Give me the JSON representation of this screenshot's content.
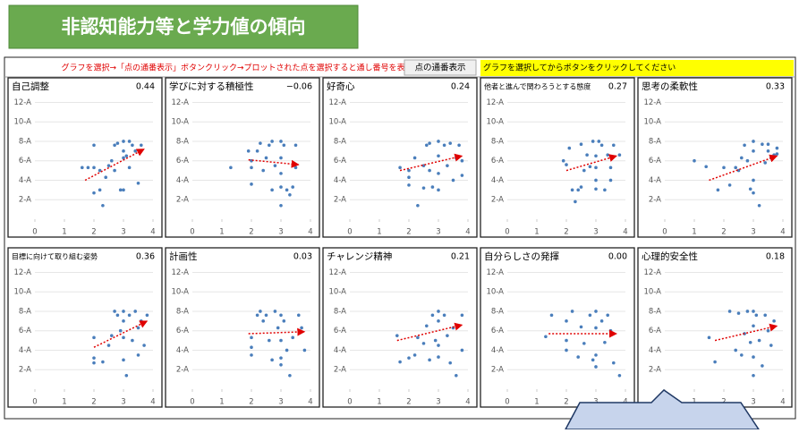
{
  "header": {
    "title": "非認知能力等と学力値の傾向"
  },
  "toolbar": {
    "instruction": "グラフを選択→「点の通番表示」ボタンクリック→プロットされた点を選択すると通し番号を表示",
    "button": "点の通番表示",
    "note": "グラフを選択してからボタンをクリックしてください"
  },
  "chart_data": [
    {
      "type": "scatter",
      "title": "自己調整",
      "correlation": {
        "value": 0.44,
        "label": "0.44"
      },
      "color": "#4a7ebb",
      "trend_color": "#e00000",
      "xlim": [
        0,
        4
      ],
      "ylim": [
        0,
        12.5
      ],
      "xticks": [
        0,
        1,
        2,
        3,
        4
      ],
      "yticks": [
        {
          "value": 2,
          "label": "2-A"
        },
        {
          "value": 4,
          "label": "4-A"
        },
        {
          "value": 6,
          "label": "6-A"
        },
        {
          "value": 8,
          "label": "8-A"
        },
        {
          "value": 10,
          "label": "10-A"
        },
        {
          "value": 12,
          "label": "12-A"
        }
      ],
      "x": [
        1.6,
        1.8,
        2,
        2,
        2,
        2.2,
        2.2,
        2.3,
        2.4,
        2.5,
        2.6,
        2.7,
        2.7,
        2.8,
        2.9,
        3,
        3,
        3,
        3,
        3.1,
        3.2,
        3.2,
        3.3,
        3.4,
        3.5,
        3.6
      ],
      "values": [
        5.3,
        5.3,
        5.3,
        7.6,
        2.7,
        5,
        3,
        1.4,
        4.3,
        5.5,
        6,
        5,
        7.6,
        7.8,
        3,
        6.3,
        8,
        7,
        3,
        6.5,
        8,
        5.3,
        7.6,
        7,
        3.7,
        7.6
      ],
      "trend": {
        "x": [
          1.7,
          3.7
        ],
        "values": [
          4,
          7.2
        ]
      }
    },
    {
      "type": "scatter",
      "title": "学びに対する積極性",
      "correlation": {
        "value": -0.06,
        "label": "−0.06"
      },
      "color": "#4a7ebb",
      "trend_color": "#e00000",
      "xlim": [
        0,
        4
      ],
      "ylim": [
        0,
        12.5
      ],
      "xticks": [
        0,
        1,
        2,
        3,
        4
      ],
      "yticks": [
        {
          "value": 2,
          "label": "2-A"
        },
        {
          "value": 4,
          "label": "4-A"
        },
        {
          "value": 6,
          "label": "6-A"
        },
        {
          "value": 8,
          "label": "8-A"
        },
        {
          "value": 10,
          "label": "10-A"
        },
        {
          "value": 12,
          "label": "12-A"
        }
      ],
      "x": [
        1.3,
        1.9,
        2,
        2,
        2,
        2.2,
        2.3,
        2.4,
        2.5,
        2.6,
        2.7,
        2.7,
        2.8,
        3,
        3,
        3,
        3,
        3,
        3.1,
        3.2,
        3.3,
        3.4,
        3.5,
        3.5
      ],
      "values": [
        5.3,
        7,
        5.3,
        3.6,
        6,
        7,
        7.8,
        5,
        6.3,
        7.6,
        3,
        8,
        5.5,
        8,
        6.3,
        4.7,
        3.3,
        1.4,
        7.6,
        3,
        2.5,
        3.3,
        7.6,
        5.3
      ],
      "trend": {
        "x": [
          1.9,
          3.6
        ],
        "values": [
          6.1,
          5.6
        ]
      }
    },
    {
      "type": "scatter",
      "title": "好奇心",
      "correlation": {
        "value": 0.24,
        "label": "0.24"
      },
      "color": "#4a7ebb",
      "trend_color": "#e00000",
      "xlim": [
        0,
        4
      ],
      "ylim": [
        0,
        12.5
      ],
      "xticks": [
        0,
        1,
        2,
        3,
        4
      ],
      "yticks": [
        {
          "value": 2,
          "label": "2-A"
        },
        {
          "value": 4,
          "label": "4-A"
        },
        {
          "value": 6,
          "label": "6-A"
        },
        {
          "value": 8,
          "label": "8-A"
        },
        {
          "value": 10,
          "label": "10-A"
        },
        {
          "value": 12,
          "label": "12-A"
        }
      ],
      "x": [
        1.7,
        2,
        2,
        2,
        2.2,
        2.3,
        2.5,
        2.5,
        2.6,
        2.7,
        2.7,
        2.8,
        3,
        3,
        3,
        3,
        3.2,
        3.3,
        3.4,
        3.5,
        3.6,
        3.7,
        3.8,
        3.8
      ],
      "values": [
        5.3,
        4.3,
        3.5,
        5,
        6.3,
        1.4,
        3.2,
        5.5,
        7.6,
        5,
        7.8,
        3.3,
        8,
        6.5,
        4.7,
        3,
        7.6,
        5.5,
        7.8,
        4,
        6.3,
        7.6,
        6,
        4.5
      ],
      "trend": {
        "x": [
          1.7,
          3.8
        ],
        "values": [
          5,
          6.5
        ]
      }
    },
    {
      "type": "scatter",
      "title": "他者と進んで関わろうとする態度",
      "correlation": {
        "value": 0.27,
        "label": "0.27"
      },
      "color": "#4a7ebb",
      "trend_color": "#e00000",
      "xlim": [
        0,
        4
      ],
      "ylim": [
        0,
        12.5
      ],
      "xticks": [
        0,
        1,
        2,
        3,
        4
      ],
      "yticks": [
        {
          "value": 2,
          "label": "2-A"
        },
        {
          "value": 4,
          "label": "4-A"
        },
        {
          "value": 6,
          "label": "6-A"
        },
        {
          "value": 8,
          "label": "8-A"
        },
        {
          "value": 10,
          "label": "10-A"
        },
        {
          "value": 12,
          "label": "12-A"
        }
      ],
      "x": [
        1.9,
        2,
        2.1,
        2.2,
        2.3,
        2.4,
        2.5,
        2.5,
        2.6,
        2.7,
        2.8,
        2.9,
        3,
        3,
        3,
        3,
        3.1,
        3.2,
        3.3,
        3.4,
        3.5,
        3.5,
        3.6,
        3.8
      ],
      "values": [
        6,
        5.6,
        7.3,
        3,
        1.8,
        3,
        3.3,
        7.7,
        5,
        6.6,
        5.4,
        8,
        3.1,
        6.5,
        5.3,
        4,
        8,
        7.6,
        3,
        6.6,
        5.3,
        4,
        7.6,
        6.6
      ],
      "trend": {
        "x": [
          2,
          3.7
        ],
        "values": [
          5,
          6.5
        ]
      }
    },
    {
      "type": "scatter",
      "title": "思考の柔軟性",
      "correlation": {
        "value": 0.33,
        "label": "0.33"
      },
      "color": "#4a7ebb",
      "trend_color": "#e00000",
      "xlim": [
        0,
        4
      ],
      "ylim": [
        0,
        12.5
      ],
      "xticks": [
        0,
        1,
        2,
        3,
        4
      ],
      "yticks": [
        {
          "value": 2,
          "label": "2-A"
        },
        {
          "value": 4,
          "label": "4-A"
        },
        {
          "value": 6,
          "label": "6-A"
        },
        {
          "value": 8,
          "label": "8-A"
        },
        {
          "value": 10,
          "label": "10-A"
        },
        {
          "value": 12,
          "label": "12-A"
        }
      ],
      "x": [
        1,
        1.4,
        1.8,
        2,
        2.2,
        2.4,
        2.5,
        2.6,
        2.7,
        2.8,
        2.9,
        3,
        3,
        3,
        3,
        3.2,
        3.3,
        3.4,
        3.5,
        3.5,
        3.6,
        3.7,
        3.8,
        3.8
      ],
      "values": [
        6,
        5.4,
        3,
        5.3,
        3.5,
        5.3,
        5,
        6.3,
        7.6,
        6,
        3.1,
        8,
        4,
        2.7,
        7,
        1.4,
        7.7,
        5.8,
        7.7,
        7,
        6.3,
        6.6,
        7.3,
        6.7
      ],
      "trend": {
        "x": [
          1.5,
          3.8
        ],
        "values": [
          4,
          6.5
        ]
      }
    },
    {
      "type": "scatter",
      "title": "目標に向けて取り組む姿勢",
      "correlation": {
        "value": 0.36,
        "label": "0.36"
      },
      "color": "#4a7ebb",
      "trend_color": "#e00000",
      "xlim": [
        0,
        4
      ],
      "ylim": [
        0,
        12.5
      ],
      "xticks": [
        0,
        1,
        2,
        3,
        4
      ],
      "yticks": [
        {
          "value": 2,
          "label": "2-A"
        },
        {
          "value": 4,
          "label": "4-A"
        },
        {
          "value": 6,
          "label": "6-A"
        },
        {
          "value": 8,
          "label": "8-A"
        },
        {
          "value": 10,
          "label": "10-A"
        },
        {
          "value": 12,
          "label": "12-A"
        }
      ],
      "x": [
        2,
        2,
        2,
        2.3,
        2.5,
        2.6,
        2.7,
        2.8,
        2.9,
        3,
        3,
        3,
        3,
        3.1,
        3.2,
        3.3,
        3.4,
        3.5,
        3.5,
        3.6,
        3.7,
        3.8
      ],
      "values": [
        5.3,
        3.2,
        2.7,
        2.8,
        4.5,
        5.5,
        8,
        7.6,
        6,
        8,
        7,
        5.3,
        3,
        1.4,
        7.6,
        5,
        8,
        6.3,
        3.5,
        7,
        4.5,
        7.6
      ],
      "trend": {
        "x": [
          2,
          3.8
        ],
        "values": [
          4.3,
          7
        ]
      }
    },
    {
      "type": "scatter",
      "title": "計画性",
      "correlation": {
        "value": 0.03,
        "label": "0.03"
      },
      "color": "#4a7ebb",
      "trend_color": "#e00000",
      "xlim": [
        0,
        4
      ],
      "ylim": [
        0,
        12.5
      ],
      "xticks": [
        0,
        1,
        2,
        3,
        4
      ],
      "yticks": [
        {
          "value": 2,
          "label": "2-A"
        },
        {
          "value": 4,
          "label": "4-A"
        },
        {
          "value": 6,
          "label": "6-A"
        },
        {
          "value": 8,
          "label": "8-A"
        },
        {
          "value": 10,
          "label": "10-A"
        },
        {
          "value": 12,
          "label": "12-A"
        }
      ],
      "x": [
        2,
        2,
        2,
        2.2,
        2.3,
        2.4,
        2.5,
        2.6,
        2.7,
        2.8,
        2.9,
        3,
        3,
        3,
        3,
        3.1,
        3.2,
        3.3,
        3.4,
        3.6,
        3.7,
        3.8
      ],
      "values": [
        5.3,
        4.3,
        3.5,
        7.6,
        8,
        7,
        7.6,
        5,
        3,
        8,
        6.3,
        7.6,
        5,
        3.2,
        2.5,
        7,
        4,
        1.4,
        5.3,
        7.6,
        6.3,
        4
      ],
      "trend": {
        "x": [
          1.9,
          3.8
        ],
        "values": [
          5.7,
          5.9
        ]
      }
    },
    {
      "type": "scatter",
      "title": "チャレンジ精神",
      "correlation": {
        "value": 0.21,
        "label": "0.21"
      },
      "color": "#4a7ebb",
      "trend_color": "#e00000",
      "xlim": [
        0,
        4
      ],
      "ylim": [
        0,
        12.5
      ],
      "xticks": [
        0,
        1,
        2,
        3,
        4
      ],
      "yticks": [
        {
          "value": 2,
          "label": "2-A"
        },
        {
          "value": 4,
          "label": "4-A"
        },
        {
          "value": 6,
          "label": "6-A"
        },
        {
          "value": 8,
          "label": "8-A"
        },
        {
          "value": 10,
          "label": "10-A"
        },
        {
          "value": 12,
          "label": "12-A"
        }
      ],
      "x": [
        1.6,
        1.7,
        2,
        2.2,
        2.3,
        2.5,
        2.6,
        2.7,
        2.8,
        2.9,
        3,
        3,
        3,
        3,
        3.2,
        3.3,
        3.4,
        3.5,
        3.6,
        3.8,
        3.8
      ],
      "values": [
        5.5,
        2.8,
        3.2,
        3.5,
        5.3,
        4.7,
        6.5,
        3,
        7.6,
        5,
        8,
        7,
        4.5,
        3.3,
        7.6,
        5.5,
        2.7,
        6.3,
        1.4,
        7.6,
        4
      ],
      "trend": {
        "x": [
          1.6,
          3.8
        ],
        "values": [
          5,
          6.6
        ]
      }
    },
    {
      "type": "scatter",
      "title": "自分らしさの発揮",
      "correlation": {
        "value": 0,
        "label": "0.00"
      },
      "color": "#4a7ebb",
      "trend_color": "#e00000",
      "xlim": [
        0,
        4
      ],
      "ylim": [
        0,
        12.5
      ],
      "xticks": [
        0,
        1,
        2,
        3,
        4
      ],
      "yticks": [
        {
          "value": 2,
          "label": "2-A"
        },
        {
          "value": 4,
          "label": "4-A"
        },
        {
          "value": 6,
          "label": "6-A"
        },
        {
          "value": 8,
          "label": "8-A"
        },
        {
          "value": 10,
          "label": "10-A"
        },
        {
          "value": 12,
          "label": "12-A"
        }
      ],
      "x": [
        1.3,
        1.5,
        2,
        2,
        2,
        2.2,
        2.4,
        2.5,
        2.6,
        2.8,
        2.9,
        3,
        3,
        3,
        3,
        3.2,
        3.3,
        3.4,
        3.5,
        3.6,
        3.8
      ],
      "values": [
        5.4,
        7.6,
        7,
        5,
        4,
        8,
        3.3,
        6.4,
        4.7,
        7.6,
        3,
        8,
        6.3,
        3.5,
        2.3,
        7,
        4.8,
        7.6,
        6,
        2.7,
        1.4
      ],
      "trend": {
        "x": [
          1.4,
          3.7
        ],
        "values": [
          5.7,
          5.7
        ]
      }
    },
    {
      "type": "scatter",
      "title": "心理的安全性",
      "correlation": {
        "value": 0.18,
        "label": "0.18"
      },
      "color": "#4a7ebb",
      "trend_color": "#e00000",
      "xlim": [
        0,
        4
      ],
      "ylim": [
        0,
        12.5
      ],
      "xticks": [
        0,
        1,
        2,
        3,
        4
      ],
      "yticks": [
        {
          "value": 2,
          "label": "2-A"
        },
        {
          "value": 4,
          "label": "4-A"
        },
        {
          "value": 6,
          "label": "6-A"
        },
        {
          "value": 8,
          "label": "8-A"
        },
        {
          "value": 10,
          "label": "10-A"
        },
        {
          "value": 12,
          "label": "12-A"
        }
      ],
      "x": [
        1.5,
        1.7,
        2.2,
        2.4,
        2.5,
        2.6,
        2.7,
        2.8,
        2.9,
        3,
        3,
        3,
        3,
        3.1,
        3.2,
        3.3,
        3.4,
        3.5,
        3.6,
        3.7
      ],
      "values": [
        5.3,
        2.8,
        8,
        4,
        7.8,
        3.5,
        5.7,
        8,
        4.8,
        8,
        6.5,
        3.3,
        1.4,
        7.6,
        5,
        2.4,
        7.6,
        6,
        4.5,
        7
      ],
      "trend": {
        "x": [
          1.7,
          3.8
        ],
        "values": [
          5,
          6.5
        ]
      }
    }
  ]
}
